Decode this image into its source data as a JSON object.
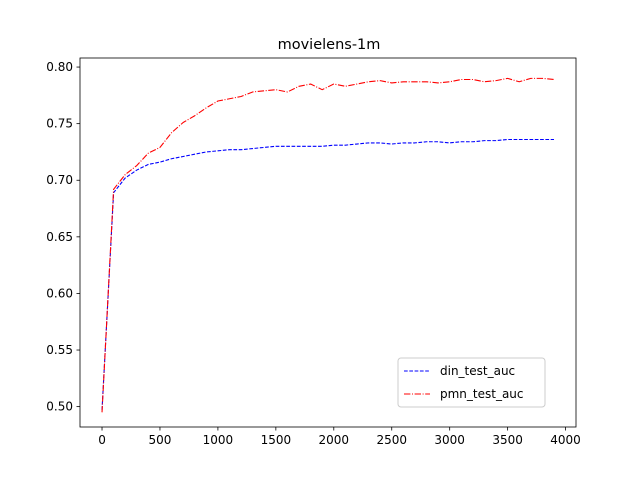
{
  "chart_data": {
    "type": "line",
    "title": "movielens-1m",
    "xlabel": "",
    "ylabel": "",
    "xlim": [
      -190,
      4090
    ],
    "ylim": [
      0.482,
      0.808
    ],
    "xticks": [
      0,
      500,
      1000,
      1500,
      2000,
      2500,
      3000,
      3500,
      4000
    ],
    "yticks": [
      0.5,
      0.55,
      0.6,
      0.65,
      0.7,
      0.75,
      0.8
    ],
    "ytick_labels": [
      "0.50",
      "0.55",
      "0.60",
      "0.65",
      "0.70",
      "0.75",
      "0.80"
    ],
    "grid": false,
    "legend_position": "lower-right",
    "x": [
      0,
      100,
      200,
      300,
      400,
      500,
      600,
      700,
      800,
      900,
      1000,
      1100,
      1200,
      1300,
      1400,
      1500,
      1600,
      1700,
      1800,
      1900,
      2000,
      2100,
      2200,
      2300,
      2400,
      2500,
      2600,
      2700,
      2800,
      2900,
      3000,
      3100,
      3200,
      3300,
      3400,
      3500,
      3600,
      3700,
      3800,
      3900
    ],
    "series": [
      {
        "name": "din_test_auc",
        "color": "#0000ff",
        "style": "dashed",
        "values": [
          0.497,
          0.689,
          0.702,
          0.709,
          0.714,
          0.716,
          0.719,
          0.721,
          0.723,
          0.725,
          0.726,
          0.727,
          0.727,
          0.728,
          0.729,
          0.73,
          0.73,
          0.73,
          0.73,
          0.73,
          0.731,
          0.731,
          0.732,
          0.733,
          0.733,
          0.732,
          0.733,
          0.733,
          0.734,
          0.734,
          0.733,
          0.734,
          0.734,
          0.735,
          0.735,
          0.736,
          0.736,
          0.736,
          0.736,
          0.736
        ]
      },
      {
        "name": "pmn_test_auc",
        "color": "#ff0000",
        "style": "dashdot",
        "values": [
          0.495,
          0.692,
          0.705,
          0.713,
          0.724,
          0.729,
          0.742,
          0.751,
          0.757,
          0.764,
          0.77,
          0.772,
          0.774,
          0.778,
          0.779,
          0.78,
          0.778,
          0.783,
          0.785,
          0.78,
          0.785,
          0.783,
          0.785,
          0.787,
          0.788,
          0.786,
          0.787,
          0.787,
          0.787,
          0.786,
          0.787,
          0.789,
          0.789,
          0.787,
          0.788,
          0.79,
          0.787,
          0.79,
          0.79,
          0.789
        ]
      }
    ]
  }
}
